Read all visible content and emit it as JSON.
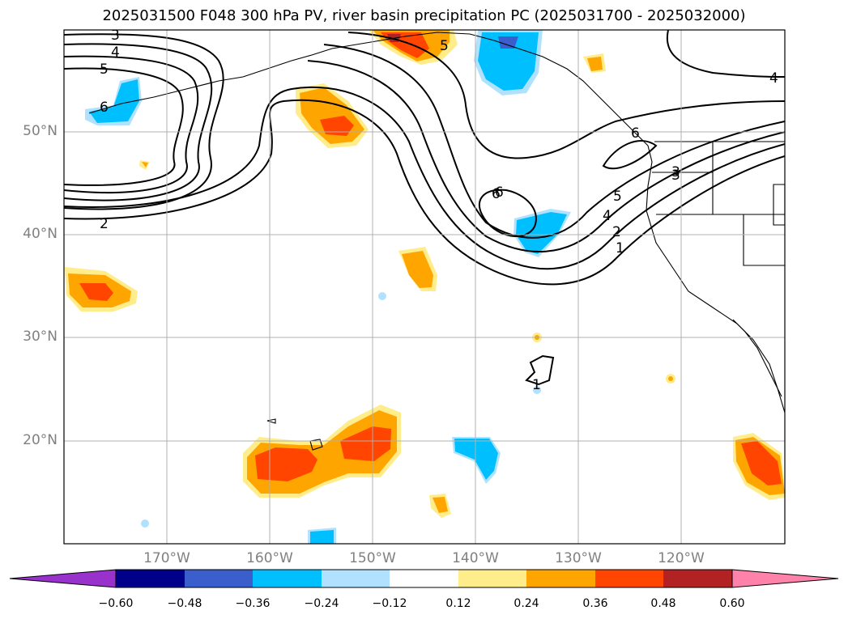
{
  "title": "2025031500 F048 300 hPa PV, river basin precipitation PC (2025031700 - 2025032000)",
  "map": {
    "lat_labels": [
      "50°N",
      "40°N",
      "30°N",
      "20°N"
    ],
    "lon_labels": [
      "170°W",
      "160°W",
      "150°W",
      "140°W",
      "130°W",
      "120°W"
    ],
    "contour_labels": [
      "3",
      "4",
      "5",
      "6",
      "2",
      "6",
      "5",
      "4",
      "3",
      "2",
      "1",
      "6",
      "5",
      "4",
      "6",
      "3",
      "1"
    ]
  },
  "colorbar": {
    "ticks": [
      "−0.60",
      "−0.48",
      "−0.36",
      "−0.24",
      "−0.12",
      "0.12",
      "0.24",
      "0.36",
      "0.48",
      "0.60"
    ],
    "colors": [
      "#9932cc",
      "#00008b",
      "#3a5fcd",
      "#00bfff",
      "#b0e2ff",
      "#ffffff",
      "#ffec8b",
      "#ffa500",
      "#ff4500",
      "#b22222",
      "#ff82ab"
    ]
  }
}
